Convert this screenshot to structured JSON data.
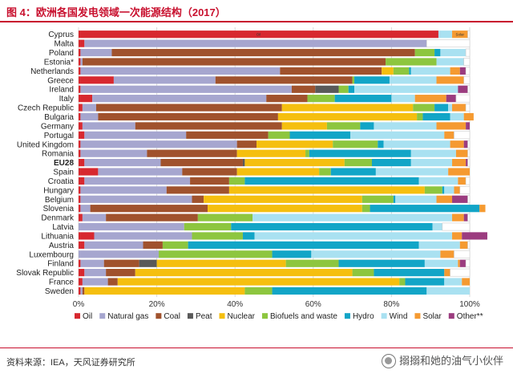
{
  "header": {
    "title": "图 4：欧洲各国发电领域一次能源结构（2017）"
  },
  "footer": {
    "source": "资料来源：IEA，天风证券研究所",
    "watermark": "搦搦和她的油气小伙伴"
  },
  "chart_data": {
    "type": "bar",
    "orientation": "horizontal",
    "stacked": true,
    "title": "图 4：欧洲各国发电领域一次能源结构（2017）",
    "xlim": [
      0,
      100
    ],
    "x_ticks": [
      "0%",
      "20%",
      "40%",
      "60%",
      "80%",
      "100%"
    ],
    "grid": true,
    "legend_position": "bottom",
    "highlight_category": "EU28",
    "categories": [
      "Cyprus",
      "Malta",
      "Poland",
      "Estonia*",
      "Netherlands",
      "Greece",
      "Ireland",
      "Italy",
      "Czech Republic",
      "Bulgaria",
      "Germany",
      "Portugal",
      "United Kingdom",
      "Romania",
      "EU28",
      "Spain",
      "Croatia",
      "Hungary",
      "Belgium",
      "Slovenia",
      "Denmark",
      "Latvia",
      "Lithuania",
      "Austria",
      "Luxembourg",
      "Finland",
      "Slovak Republic",
      "France",
      "Sweden"
    ],
    "series": [
      {
        "name": "Oil",
        "color": "#d7282f",
        "values": [
          92,
          1.5,
          0.5,
          0.5,
          0.5,
          9,
          0.5,
          3.5,
          1,
          0.5,
          1,
          1.5,
          0.5,
          0.5,
          1.5,
          5,
          1.5,
          0.5,
          0.5,
          0.5,
          1,
          0,
          4,
          1.5,
          0,
          0.5,
          1.5,
          1,
          0.5
        ]
      },
      {
        "name": "Natural gas",
        "color": "#a6a6cf",
        "values": [
          0,
          87.5,
          8,
          0.5,
          51,
          26,
          54,
          44.5,
          3.5,
          4.5,
          13.5,
          26,
          40,
          17,
          19.5,
          21.5,
          27,
          22,
          28.5,
          2.5,
          6,
          27,
          25,
          15,
          20.5,
          6,
          5.5,
          6.5,
          0.5
        ]
      },
      {
        "name": "Coal",
        "color": "#a0522d",
        "values": [
          0,
          0,
          77.5,
          77.5,
          26,
          35,
          6,
          10.5,
          47.5,
          46,
          37.5,
          21,
          5,
          23,
          21,
          14,
          10,
          16,
          3,
          30,
          23.5,
          0,
          0,
          5,
          0,
          9,
          7.5,
          2.5,
          0.5
        ]
      },
      {
        "name": "Peat",
        "color": "#595959",
        "values": [
          0,
          0,
          0,
          0,
          0,
          0,
          6,
          0,
          0,
          0,
          0,
          0,
          0,
          0,
          0.5,
          0,
          0,
          0,
          0,
          0,
          0,
          0,
          0,
          0,
          0,
          4.5,
          0,
          0,
          0
        ]
      },
      {
        "name": "Nuclear",
        "color": "#f5bf0f",
        "values": [
          0,
          0,
          0,
          0,
          3,
          0,
          0,
          0,
          33.5,
          35.5,
          11.5,
          0,
          19.5,
          17.5,
          25.5,
          21,
          0,
          50,
          40.5,
          39.5,
          0,
          0,
          0,
          0,
          0,
          33,
          55.5,
          72,
          41
        ]
      },
      {
        "name": "Biofuels and waste",
        "color": "#8dc63f",
        "values": [
          0,
          0,
          5,
          13,
          4,
          0.5,
          2.5,
          7,
          5.5,
          1.5,
          8.5,
          5.5,
          11.5,
          1,
          7,
          3,
          4,
          4.5,
          8,
          2,
          14,
          12,
          13,
          6.5,
          29,
          13.5,
          5.5,
          1.5,
          7
        ]
      },
      {
        "name": "Hydro",
        "color": "#12a5c7",
        "values": [
          0,
          0,
          1.5,
          0,
          0.5,
          9,
          1.5,
          14.5,
          3.5,
          7,
          3.5,
          15.5,
          1.5,
          26,
          10,
          11.5,
          44.5,
          0.5,
          0.5,
          28,
          0,
          51.5,
          3,
          59,
          10,
          22,
          18,
          10,
          39.5
        ]
      },
      {
        "name": "Wind",
        "color": "#a9e1f1",
        "values": [
          3.5,
          0,
          6.5,
          7,
          10,
          12,
          26.5,
          6,
          1,
          3.5,
          16,
          24,
          17,
          11.5,
          10.5,
          18.5,
          10,
          2.5,
          10.5,
          0,
          51,
          2.5,
          50.5,
          10.5,
          33,
          8.5,
          0,
          4.5,
          11
        ]
      },
      {
        "name": "Solar",
        "color": "#f59a31",
        "values": [
          4,
          0,
          0,
          0,
          2.5,
          7,
          0,
          8,
          3.5,
          2.5,
          7.5,
          2.5,
          3.5,
          3,
          3.5,
          5.5,
          2,
          1.5,
          4,
          1.5,
          3,
          0,
          2.5,
          2,
          3.5,
          0.5,
          1.5,
          2,
          0
        ]
      },
      {
        "name": "Other**",
        "color": "#9b3c7f",
        "values": [
          0,
          0,
          0,
          0,
          1.5,
          0,
          2.5,
          2.5,
          0,
          0,
          1,
          0,
          1,
          0,
          0.5,
          0,
          0,
          0,
          4,
          0,
          1,
          0,
          6.5,
          0,
          0,
          1.5,
          0,
          0,
          0
        ]
      }
    ],
    "annotations": [
      {
        "category": "Cyprus",
        "series": "Oil",
        "text": "Oil"
      },
      {
        "category": "Cyprus",
        "series": "Solar",
        "text": "Solar"
      }
    ]
  }
}
